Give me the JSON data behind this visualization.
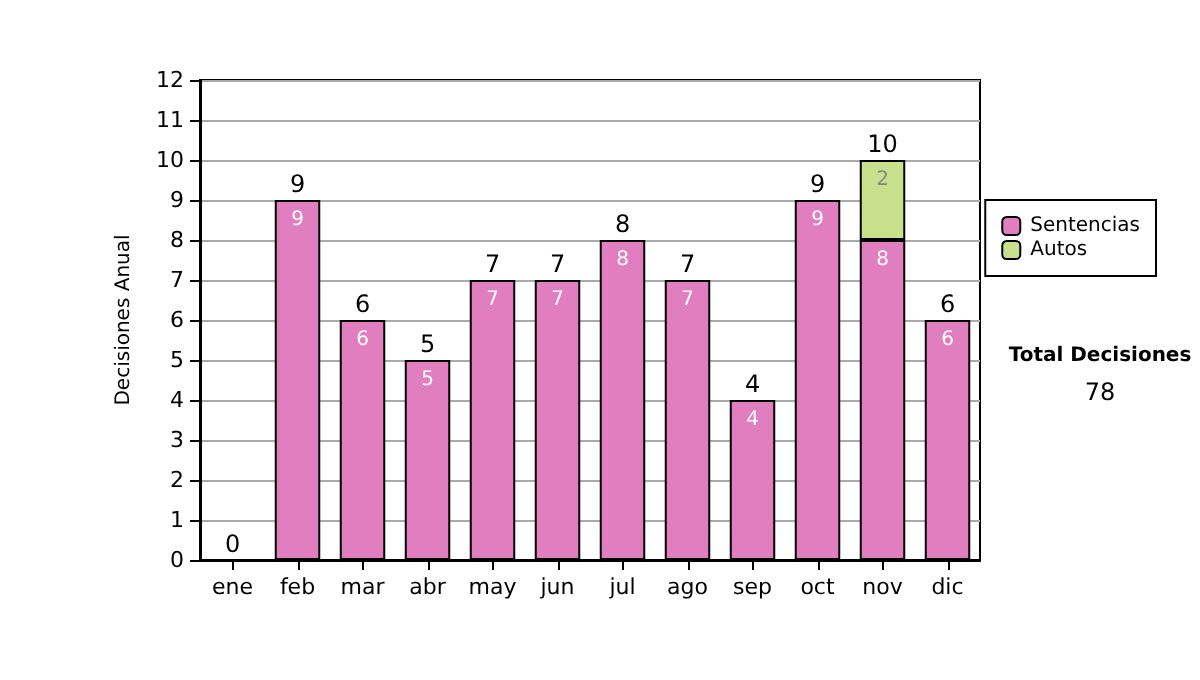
{
  "chart_data": {
    "type": "bar",
    "stacked": true,
    "ylabel": "Decisiones Anual",
    "categories": [
      "ene",
      "feb",
      "mar",
      "abr",
      "may",
      "jun",
      "jul",
      "ago",
      "sep",
      "oct",
      "nov",
      "dic"
    ],
    "series": [
      {
        "name": "Sentencias",
        "color": "#e07ec0",
        "values": [
          0,
          9,
          6,
          5,
          7,
          7,
          8,
          7,
          4,
          9,
          8,
          6
        ],
        "value_labels": [
          null,
          "9",
          "6",
          "5",
          "7",
          "7",
          "8",
          "7",
          "4",
          "9",
          "8",
          "6"
        ]
      },
      {
        "name": "Autos",
        "color": "#c8e08c",
        "values": [
          0,
          0,
          0,
          0,
          0,
          0,
          0,
          0,
          0,
          0,
          2,
          0
        ],
        "value_labels": [
          null,
          null,
          null,
          null,
          null,
          null,
          null,
          null,
          null,
          null,
          "2",
          null
        ]
      }
    ],
    "totals": [
      "0",
      "9",
      "6",
      "5",
      "7",
      "7",
      "8",
      "7",
      "4",
      "9",
      "10",
      "6"
    ],
    "ylim": [
      0,
      12
    ],
    "yticks": [
      0,
      1,
      2,
      3,
      4,
      5,
      6,
      7,
      8,
      9,
      10,
      11,
      12
    ],
    "grid": "y",
    "legend": "right",
    "annotations": [
      "Total Decisiones",
      "78"
    ]
  }
}
